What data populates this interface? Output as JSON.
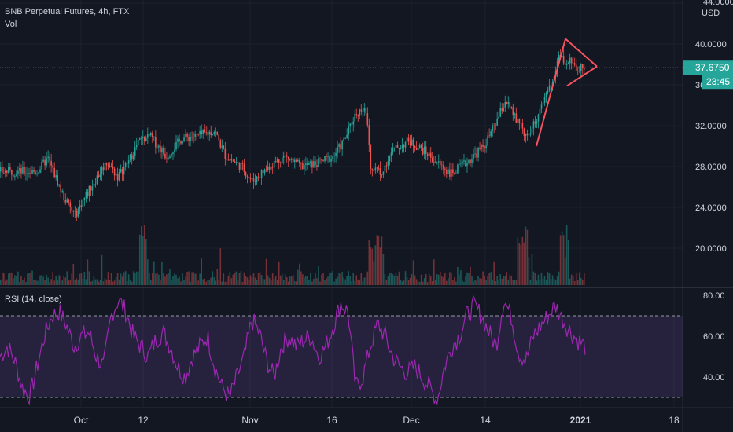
{
  "header": {
    "symbol_line": "BNB Perpetual Futures, 4h, FTX",
    "volume_label": "Vol",
    "rsi_label": "RSI (14, close)"
  },
  "price_axis": {
    "currency": "USD",
    "top_partial": "44.0000",
    "ticks": [
      "40.0000",
      "36.0000",
      "32.0000",
      "28.0000",
      "24.0000",
      "20.0000"
    ],
    "current_price": "37.6750",
    "countdown": "23:45"
  },
  "rsi_axis": {
    "ticks": [
      "80.00",
      "60.00",
      "40.00"
    ]
  },
  "time_axis": {
    "ticks": [
      "Oct",
      "12",
      "Nov",
      "16",
      "Dec",
      "14",
      "2021",
      "18"
    ]
  },
  "colors": {
    "background": "#131722",
    "up": "#26a69a",
    "down": "#ef5350",
    "rsi_line": "#9c27b0",
    "rsi_band": "#7e57c2",
    "pattern": "#f7525f",
    "price_tag": "#26a69a"
  },
  "chart_data": {
    "type": "candlestick",
    "interval": "4h",
    "price_range": [
      16,
      44
    ],
    "close_path_approx": [
      {
        "x": "Sep 23",
        "y": 27.5
      },
      {
        "x": "Sep 25",
        "y": 28.8
      },
      {
        "x": "Sep 28",
        "y": 25.0
      },
      {
        "x": "Sep 30",
        "y": 23.2
      },
      {
        "x": "Oct 3",
        "y": 26.0
      },
      {
        "x": "Oct 6",
        "y": 28.5
      },
      {
        "x": "Oct 8",
        "y": 27.0
      },
      {
        "x": "Oct 10",
        "y": 28.5
      },
      {
        "x": "Oct 12",
        "y": 30.5
      },
      {
        "x": "Oct 14",
        "y": 31.0
      },
      {
        "x": "Oct 17",
        "y": 29.0
      },
      {
        "x": "Oct 20",
        "y": 30.8
      },
      {
        "x": "Oct 23",
        "y": 31.0
      },
      {
        "x": "Oct 26",
        "y": 31.5
      },
      {
        "x": "Oct 28",
        "y": 29.0
      },
      {
        "x": "Oct 31",
        "y": 28.0
      },
      {
        "x": "Nov 2",
        "y": 26.5
      },
      {
        "x": "Nov 5",
        "y": 28.0
      },
      {
        "x": "Nov 8",
        "y": 29.0
      },
      {
        "x": "Nov 11",
        "y": 28.0
      },
      {
        "x": "Nov 14",
        "y": 28.3
      },
      {
        "x": "Nov 17",
        "y": 29.0
      },
      {
        "x": "Nov 19",
        "y": 30.5
      },
      {
        "x": "Nov 21",
        "y": 33.0
      },
      {
        "x": "Nov 23",
        "y": 34.0
      },
      {
        "x": "Nov 24",
        "y": 28.0
      },
      {
        "x": "Nov 26",
        "y": 27.5
      },
      {
        "x": "Nov 28",
        "y": 29.5
      },
      {
        "x": "Dec 1",
        "y": 30.5
      },
      {
        "x": "Dec 4",
        "y": 29.5
      },
      {
        "x": "Dec 6",
        "y": 28.5
      },
      {
        "x": "Dec 9",
        "y": 27.3
      },
      {
        "x": "Dec 12",
        "y": 28.5
      },
      {
        "x": "Dec 15",
        "y": 30.0
      },
      {
        "x": "Dec 17",
        "y": 32.0
      },
      {
        "x": "Dec 19",
        "y": 34.5
      },
      {
        "x": "Dec 21",
        "y": 32.5
      },
      {
        "x": "Dec 23",
        "y": 31.0
      },
      {
        "x": "Dec 26",
        "y": 34.0
      },
      {
        "x": "Dec 28",
        "y": 37.0
      },
      {
        "x": "Dec 29",
        "y": 39.2
      },
      {
        "x": "Dec 30",
        "y": 37.8
      },
      {
        "x": "Dec 31",
        "y": 38.3
      },
      {
        "x": "Jan 1",
        "y": 37.675
      }
    ],
    "rsi": {
      "range": [
        25,
        85
      ],
      "levels": [
        70,
        30
      ],
      "values_approx": [
        50,
        55,
        48,
        35,
        30,
        45,
        60,
        70,
        72,
        65,
        55,
        60,
        62,
        50,
        45,
        70,
        78,
        72,
        60,
        55,
        50,
        58,
        62,
        55,
        45,
        40,
        50,
        55,
        60,
        45,
        35,
        30,
        40,
        50,
        68,
        62,
        48,
        40,
        55,
        60,
        55,
        58,
        60,
        50,
        55,
        65,
        76,
        72,
        35,
        40,
        55,
        66,
        60,
        50,
        45,
        42,
        45,
        40,
        35,
        28,
        45,
        55,
        60,
        70,
        75,
        70,
        62,
        55,
        78,
        70,
        52,
        48,
        60,
        65,
        70,
        75,
        68,
        62,
        58,
        55
      ]
    },
    "pattern": {
      "type": "triangle",
      "points": [
        {
          "x": "Dec 23",
          "y": 30.0
        },
        {
          "x": "Dec 29",
          "y": 40.5
        },
        {
          "x": "Jan 1",
          "y": 37.8
        },
        {
          "x": "Dec 29",
          "y": 36.0
        }
      ]
    },
    "current_price": 37.675
  }
}
